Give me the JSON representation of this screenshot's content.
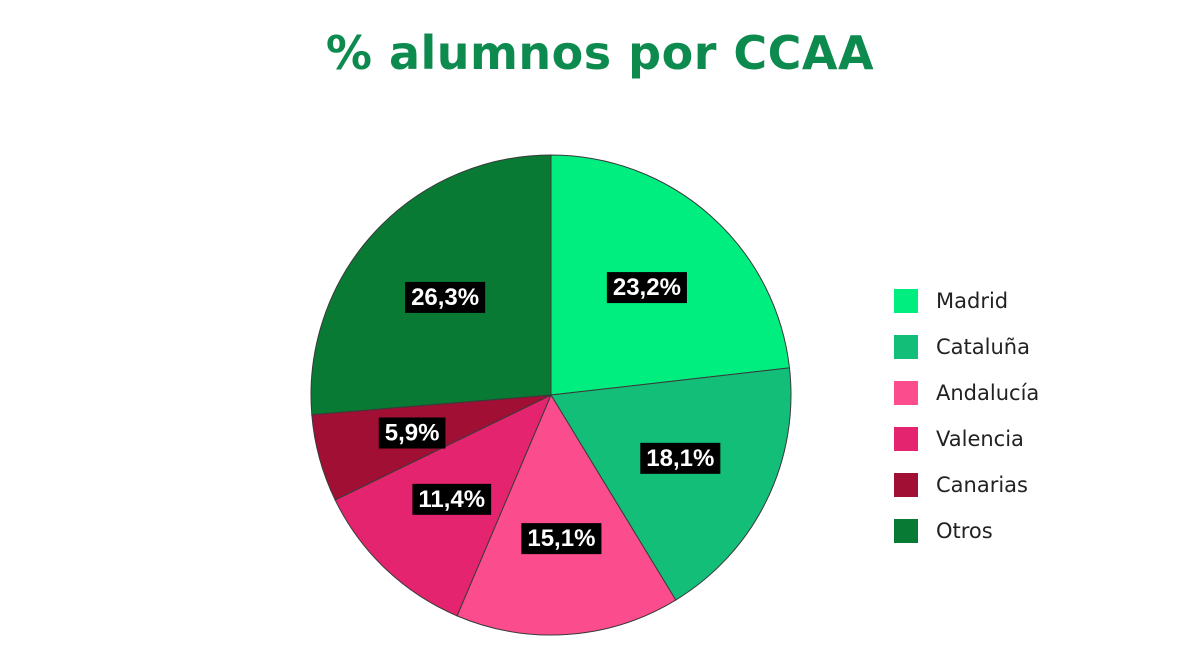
{
  "chart_data": {
    "type": "pie",
    "title": "% alumnos por CCAA",
    "categories": [
      "Madrid",
      "Cataluña",
      "Andalucía",
      "Valencia",
      "Canarias",
      "Otros"
    ],
    "values": [
      23.2,
      18.1,
      15.1,
      11.4,
      5.9,
      26.3
    ],
    "value_labels": [
      "23,2%",
      "18,1%",
      "15,1%",
      "11,4%",
      "5,9%",
      "26,3%"
    ],
    "colors": [
      "#00ee7f",
      "#13bf78",
      "#fb4c8d",
      "#e5246f",
      "#a10f35",
      "#087a34"
    ],
    "legend_position": "right"
  }
}
